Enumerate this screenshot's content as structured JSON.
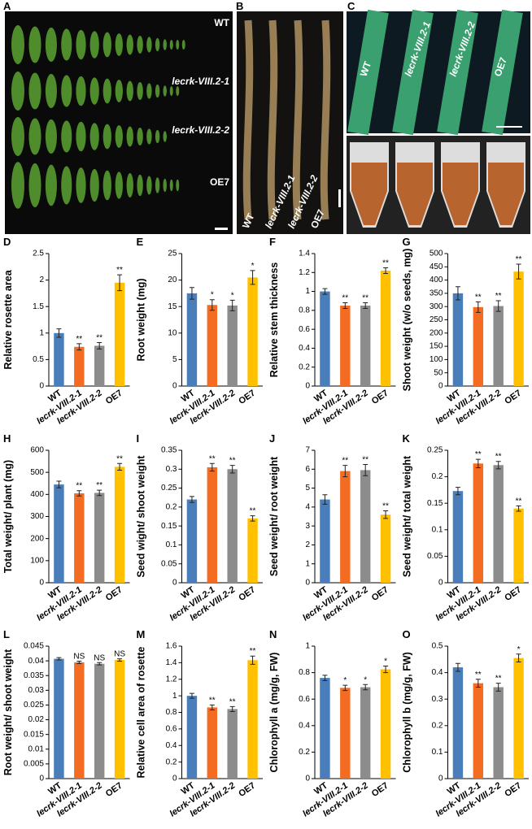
{
  "panels": {
    "A": {
      "label": "A",
      "rows": [
        "WT",
        "lecrk-VIII.2-1",
        "lecrk-VIII.2-2",
        "OE7"
      ]
    },
    "B": {
      "label": "B",
      "lines": [
        "WT",
        "lecrk-VIII.2-1",
        "lecrk-VIII.2-2",
        "OE7"
      ]
    },
    "C": {
      "label": "C",
      "stems": [
        "WT",
        "lecrk-VIII.2-1",
        "lecrk-VIII.2-2",
        "OE7"
      ]
    }
  },
  "chart_data": [
    {
      "type": "bar",
      "label": "D",
      "y_label": "Relative rosette area",
      "categories": [
        "WT",
        "lecrk-VIII.2-1",
        "lecrk-VIII.2-2",
        "OE7"
      ],
      "values": [
        1.0,
        0.74,
        0.76,
        1.95
      ],
      "errors": [
        0.08,
        0.06,
        0.06,
        0.15
      ],
      "annotations": [
        null,
        "**",
        "**",
        "**"
      ],
      "colors": [
        "#4a7ebb",
        "#f36c21",
        "#8c8c8c",
        "#ffc000"
      ],
      "ylim": [
        0,
        2.5
      ],
      "yticks": [
        0,
        0.5,
        1,
        1.5,
        2,
        2.5
      ]
    },
    {
      "type": "bar",
      "label": "E",
      "y_label": "Root weight (mg)",
      "categories": [
        "WT",
        "lecrk-VIII.2-1",
        "lecrk-VIII.2-2",
        "OE7"
      ],
      "values": [
        17.5,
        15.3,
        15.2,
        20.5
      ],
      "errors": [
        1.1,
        1.0,
        1.0,
        1.3
      ],
      "annotations": [
        null,
        "*",
        "*",
        "*"
      ],
      "colors": [
        "#4a7ebb",
        "#f36c21",
        "#8c8c8c",
        "#ffc000"
      ],
      "ylim": [
        0,
        25
      ],
      "yticks": [
        0,
        5,
        10,
        15,
        20,
        25
      ]
    },
    {
      "type": "bar",
      "label": "F",
      "y_label": "Relative stem thickness",
      "categories": [
        "WT",
        "lecrk-VIII.2-1",
        "lecrk-VIII.2-2",
        "OE7"
      ],
      "values": [
        1.0,
        0.85,
        0.85,
        1.22
      ],
      "errors": [
        0.03,
        0.03,
        0.03,
        0.03
      ],
      "annotations": [
        null,
        "**",
        "**",
        "**"
      ],
      "colors": [
        "#4a7ebb",
        "#f36c21",
        "#8c8c8c",
        "#ffc000"
      ],
      "ylim": [
        0,
        1.4
      ],
      "yticks": [
        0,
        0.2,
        0.4,
        0.6,
        0.8,
        1,
        1.2,
        1.4
      ]
    },
    {
      "type": "bar",
      "label": "G",
      "y_label": "Shoot weight (w/o seeds, mg)",
      "categories": [
        "WT",
        "lecrk-VIII.2-1",
        "lecrk-VIII.2-2",
        "OE7"
      ],
      "values": [
        350,
        298,
        302,
        432
      ],
      "errors": [
        25,
        20,
        20,
        28
      ],
      "annotations": [
        null,
        "**",
        "**",
        "**"
      ],
      "colors": [
        "#4a7ebb",
        "#f36c21",
        "#8c8c8c",
        "#ffc000"
      ],
      "ylim": [
        0,
        500
      ],
      "yticks": [
        0,
        50,
        100,
        150,
        200,
        250,
        300,
        350,
        400,
        450,
        500
      ]
    },
    {
      "type": "bar",
      "label": "H",
      "y_label": "Total weight/ plant (mg)",
      "categories": [
        "WT",
        "lecrk-VIII.2-1",
        "lecrk-VIII.2-2",
        "OE7"
      ],
      "values": [
        445,
        405,
        407,
        525
      ],
      "errors": [
        15,
        12,
        12,
        15
      ],
      "annotations": [
        null,
        "**",
        "**",
        "**"
      ],
      "colors": [
        "#4a7ebb",
        "#f36c21",
        "#8c8c8c",
        "#ffc000"
      ],
      "ylim": [
        0,
        600
      ],
      "yticks": [
        0,
        100,
        200,
        300,
        400,
        500,
        600
      ]
    },
    {
      "type": "bar",
      "label": "I",
      "y_label": "Seed wight/ shoot weight",
      "categories": [
        "WT",
        "lecrk-VIII.2-1",
        "lecrk-VIII.2-2",
        "OE7"
      ],
      "values": [
        0.22,
        0.305,
        0.3,
        0.17
      ],
      "errors": [
        0.008,
        0.01,
        0.01,
        0.007
      ],
      "annotations": [
        null,
        "**",
        "**",
        "**"
      ],
      "colors": [
        "#4a7ebb",
        "#f36c21",
        "#8c8c8c",
        "#ffc000"
      ],
      "ylim": [
        0,
        0.35
      ],
      "yticks": [
        0,
        0.05,
        0.1,
        0.15,
        0.2,
        0.25,
        0.3,
        0.35
      ]
    },
    {
      "type": "bar",
      "label": "J",
      "y_label": "Seed weight/ root weight",
      "categories": [
        "WT",
        "lecrk-VIII.2-1",
        "lecrk-VIII.2-2",
        "OE7"
      ],
      "values": [
        4.4,
        5.9,
        5.95,
        3.6
      ],
      "errors": [
        0.25,
        0.3,
        0.3,
        0.2
      ],
      "annotations": [
        null,
        "**",
        "**",
        "**"
      ],
      "colors": [
        "#4a7ebb",
        "#f36c21",
        "#8c8c8c",
        "#ffc000"
      ],
      "ylim": [
        0,
        7
      ],
      "yticks": [
        0,
        1,
        2,
        3,
        4,
        5,
        6,
        7
      ]
    },
    {
      "type": "bar",
      "label": "K",
      "y_label": "Seed weight/ total weight",
      "categories": [
        "WT",
        "lecrk-VIII.2-1",
        "lecrk-VIII.2-2",
        "OE7"
      ],
      "values": [
        0.173,
        0.225,
        0.222,
        0.14
      ],
      "errors": [
        0.007,
        0.008,
        0.007,
        0.005
      ],
      "annotations": [
        null,
        "**",
        "**",
        "**"
      ],
      "colors": [
        "#4a7ebb",
        "#f36c21",
        "#8c8c8c",
        "#ffc000"
      ],
      "ylim": [
        0,
        0.25
      ],
      "yticks": [
        0,
        0.05,
        0.1,
        0.15,
        0.2,
        0.25
      ]
    },
    {
      "type": "bar",
      "label": "L",
      "y_label": "Root weight/ shoot weight",
      "categories": [
        "WT",
        "lecrk-VIII.2-1",
        "lecrk-VIII.2-2",
        "OE7"
      ],
      "values": [
        0.0407,
        0.0395,
        0.039,
        0.0403
      ],
      "errors": [
        0.0004,
        0.0004,
        0.0004,
        0.0004
      ],
      "annotations": [
        null,
        "NS",
        "NS",
        "NS"
      ],
      "colors": [
        "#4a7ebb",
        "#f36c21",
        "#8c8c8c",
        "#ffc000"
      ],
      "ylim": [
        0,
        0.045
      ],
      "yticks": [
        0,
        0.005,
        0.01,
        0.015,
        0.02,
        0.025,
        0.03,
        0.035,
        0.04,
        0.045
      ]
    },
    {
      "type": "bar",
      "label": "M",
      "y_label": "Relative cell area of rosette",
      "categories": [
        "WT",
        "lecrk-VIII.2-1",
        "lecrk-VIII.2-2",
        "OE7"
      ],
      "values": [
        1.0,
        0.86,
        0.84,
        1.43
      ],
      "errors": [
        0.03,
        0.03,
        0.03,
        0.05
      ],
      "annotations": [
        null,
        "**",
        "**",
        "**"
      ],
      "colors": [
        "#4a7ebb",
        "#f36c21",
        "#8c8c8c",
        "#ffc000"
      ],
      "ylim": [
        0,
        1.6
      ],
      "yticks": [
        0,
        0.2,
        0.4,
        0.6,
        0.8,
        1,
        1.2,
        1.4,
        1.6
      ]
    },
    {
      "type": "bar",
      "label": "N",
      "y_label": "Chlorophyll a (mg/g, FW)",
      "categories": [
        "WT",
        "lecrk-VIII.2-1",
        "lecrk-VIII.2-2",
        "OE7"
      ],
      "values": [
        0.76,
        0.685,
        0.69,
        0.825
      ],
      "errors": [
        0.02,
        0.02,
        0.02,
        0.025
      ],
      "annotations": [
        null,
        "*",
        "*",
        "*"
      ],
      "colors": [
        "#4a7ebb",
        "#f36c21",
        "#8c8c8c",
        "#ffc000"
      ],
      "ylim": [
        0,
        1
      ],
      "yticks": [
        0,
        0.2,
        0.4,
        0.6,
        0.8,
        1
      ]
    },
    {
      "type": "bar",
      "label": "O",
      "y_label": "Chlorophyll b (mg/g, FW)",
      "categories": [
        "WT",
        "lecrk-VIII.2-1",
        "lecrk-VIII.2-2",
        "OE7"
      ],
      "values": [
        0.42,
        0.36,
        0.345,
        0.455
      ],
      "errors": [
        0.015,
        0.015,
        0.015,
        0.015
      ],
      "annotations": [
        null,
        "**",
        "**",
        "*"
      ],
      "colors": [
        "#4a7ebb",
        "#f36c21",
        "#8c8c8c",
        "#ffc000"
      ],
      "ylim": [
        0,
        0.5
      ],
      "yticks": [
        0,
        0.1,
        0.2,
        0.3,
        0.4,
        0.5
      ]
    }
  ]
}
